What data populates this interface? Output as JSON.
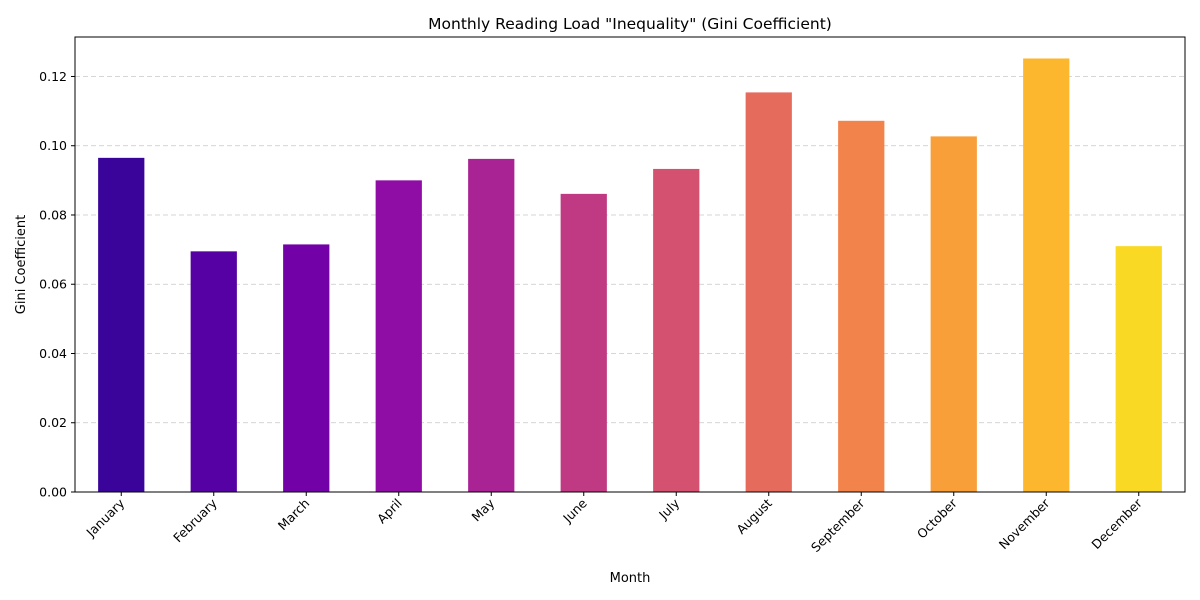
{
  "chart_data": {
    "type": "bar",
    "title": "Monthly Reading Load \"Inequality\" (Gini Coefficient)",
    "xlabel": "Month",
    "ylabel": "Gini Coefficient",
    "categories": [
      "January",
      "February",
      "March",
      "April",
      "May",
      "June",
      "July",
      "August",
      "September",
      "October",
      "November",
      "December"
    ],
    "values": [
      0.0965,
      0.0695,
      0.0715,
      0.09,
      0.0962,
      0.0861,
      0.0933,
      0.1154,
      0.1072,
      0.1027,
      0.1252,
      0.071
    ],
    "colors": [
      "#3a049a",
      "#5601a4",
      "#7301a8",
      "#8f0da4",
      "#aa2395",
      "#c03a83",
      "#d45270",
      "#e56b5d",
      "#f2844b",
      "#f89f3a",
      "#fdb72f",
      "#f9d924"
    ],
    "ylim": [
      0,
      0.1314
    ],
    "yticks": [
      "0.00",
      "0.02",
      "0.04",
      "0.06",
      "0.08",
      "0.10",
      "0.12"
    ],
    "ytick_values": [
      0,
      0.02,
      0.04,
      0.06,
      0.08,
      0.1,
      0.12
    ],
    "grid": "y-dashed",
    "x_tick_rotation": 45
  }
}
